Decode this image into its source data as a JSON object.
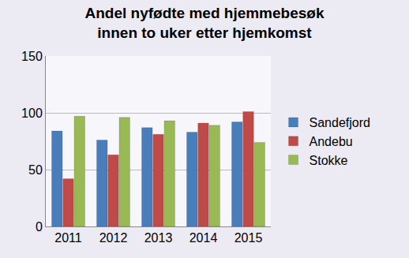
{
  "chart_data": {
    "type": "bar",
    "title": "Andel nyfødte med hjemmebesøk\ninnen to uker etter hjemkomst",
    "categories": [
      "2011",
      "2012",
      "2013",
      "2014",
      "2015"
    ],
    "series": [
      {
        "name": "Sandefjord",
        "color": "#4a7ebb",
        "values": [
          84,
          76,
          87,
          83,
          92
        ]
      },
      {
        "name": "Andebu",
        "color": "#be4b48",
        "values": [
          42,
          63,
          81,
          91,
          101
        ]
      },
      {
        "name": "Stokke",
        "color": "#98b954",
        "values": [
          97,
          96,
          93,
          89,
          74
        ]
      }
    ],
    "ylim": [
      0,
      150
    ],
    "yticks": [
      0,
      50,
      100,
      150
    ],
    "grid": true,
    "legend": "right"
  }
}
